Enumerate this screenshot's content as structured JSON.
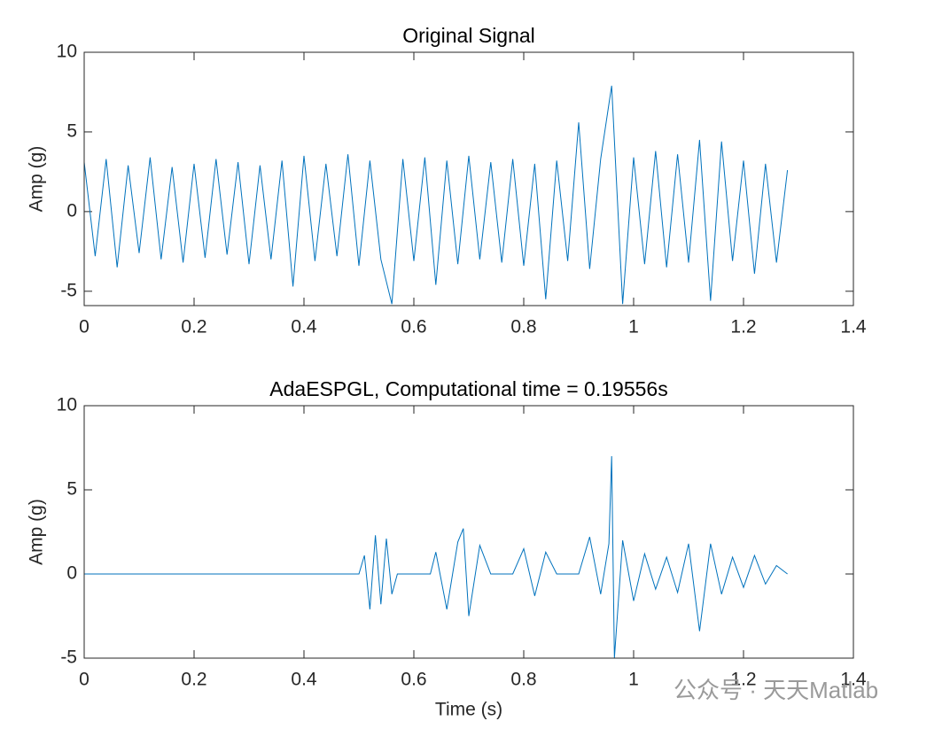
{
  "chart_data": [
    {
      "type": "line",
      "title": "Original Signal",
      "ylabel": "Amp (g)",
      "xlim": [
        0,
        1.4
      ],
      "xticks": [
        0,
        0.2,
        0.4,
        0.6,
        0.8,
        1,
        1.2,
        1.4
      ],
      "ylim": [
        -5.9,
        10
      ],
      "yticks": [
        -5,
        0,
        5,
        10
      ],
      "x": [
        0,
        0.02,
        0.04,
        0.06,
        0.08,
        0.1,
        0.12,
        0.14,
        0.16,
        0.18,
        0.2,
        0.22,
        0.24,
        0.26,
        0.28,
        0.3,
        0.32,
        0.34,
        0.36,
        0.38,
        0.4,
        0.42,
        0.44,
        0.46,
        0.48,
        0.5,
        0.52,
        0.54,
        0.56,
        0.58,
        0.6,
        0.62,
        0.64,
        0.66,
        0.68,
        0.7,
        0.72,
        0.74,
        0.76,
        0.78,
        0.8,
        0.82,
        0.84,
        0.86,
        0.88,
        0.9,
        0.92,
        0.94,
        0.96,
        0.98,
        1,
        1.02,
        1.04,
        1.06,
        1.08,
        1.1,
        1.12,
        1.14,
        1.16,
        1.18,
        1.2,
        1.22,
        1.24,
        1.26,
        1.28
      ],
      "series": [
        {
          "color": "#0072bd",
          "values": [
            3.1,
            -2.8,
            3.3,
            -3.5,
            2.9,
            -2.6,
            3.4,
            -3.0,
            2.8,
            -3.2,
            3.0,
            -2.9,
            3.3,
            -2.7,
            3.1,
            -3.3,
            2.9,
            -3.0,
            3.2,
            -4.7,
            3.5,
            -3.1,
            3.0,
            -2.8,
            3.6,
            -3.4,
            3.2,
            -3.0,
            -5.8,
            3.3,
            -3.1,
            3.4,
            -4.6,
            3.2,
            -3.3,
            3.5,
            -3.0,
            3.1,
            -3.2,
            3.3,
            -3.4,
            3.0,
            -5.5,
            3.2,
            -3.1,
            5.6,
            -3.6,
            3.3,
            7.9,
            -5.8,
            3.4,
            -3.3,
            3.8,
            -3.5,
            3.6,
            -3.2,
            4.5,
            -5.6,
            4.4,
            -3.1,
            3.2,
            -3.9,
            3.0,
            -3.2,
            2.6
          ]
        }
      ]
    },
    {
      "type": "line",
      "title": "AdaESPGL, Computational time = 0.19556s",
      "ylabel": "Amp (g)",
      "xlabel": "Time (s)",
      "xlim": [
        0,
        1.4
      ],
      "xticks": [
        0,
        0.2,
        0.4,
        0.6,
        0.8,
        1,
        1.2,
        1.4
      ],
      "ylim": [
        -5,
        10
      ],
      "yticks": [
        -5,
        0,
        5,
        10
      ],
      "x": [
        0,
        0.5,
        0.51,
        0.52,
        0.53,
        0.54,
        0.55,
        0.56,
        0.57,
        0.63,
        0.64,
        0.66,
        0.68,
        0.69,
        0.7,
        0.72,
        0.74,
        0.78,
        0.8,
        0.82,
        0.84,
        0.86,
        0.9,
        0.92,
        0.94,
        0.955,
        0.96,
        0.965,
        0.98,
        1,
        1.02,
        1.04,
        1.06,
        1.08,
        1.1,
        1.12,
        1.14,
        1.16,
        1.18,
        1.2,
        1.22,
        1.24,
        1.26,
        1.28
      ],
      "series": [
        {
          "color": "#0072bd",
          "values": [
            0,
            0,
            1.1,
            -2.1,
            2.3,
            -1.8,
            2.1,
            -1.2,
            0,
            0,
            1.3,
            -2.1,
            1.9,
            2.7,
            -2.5,
            1.7,
            0,
            0,
            1.5,
            -1.3,
            1.3,
            0,
            0,
            2.2,
            -1.2,
            1.8,
            7.0,
            -5.0,
            2.0,
            -1.6,
            1.2,
            -0.9,
            1.0,
            -1.1,
            1.8,
            -3.4,
            1.8,
            -1.2,
            1.0,
            -0.8,
            1.1,
            -0.6,
            0.5,
            0
          ]
        }
      ]
    }
  ],
  "watermark": "公众号 · 天天Matlab"
}
